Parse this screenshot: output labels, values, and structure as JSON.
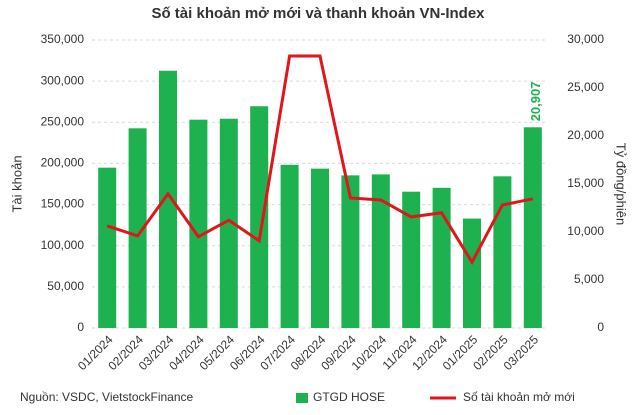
{
  "chart_data": {
    "type": "bar-line",
    "title": "Số tài khoản mở mới và thanh khoản VN-Index",
    "source": "Nguồn: VSDC, VietstockFinance",
    "y_label": "Tài khoản",
    "y2_label": "Tỷ đồng/phiên",
    "categories": [
      "01/2024",
      "02/2024",
      "03/2024",
      "04/2024",
      "05/2024",
      "06/2024",
      "07/2024",
      "08/2024",
      "09/2024",
      "10/2024",
      "11/2024",
      "12/2024",
      "01/2025",
      "02/2025",
      "03/2025"
    ],
    "series": [
      {
        "name": "GTGD HOSE",
        "type": "bar",
        "axis": "y2",
        "color": "#1db24f",
        "values": [
          16700,
          20800,
          26800,
          21700,
          21800,
          23100,
          17000,
          16600,
          15900,
          16000,
          14200,
          14600,
          11400,
          15800,
          20907
        ],
        "value_labels": [
          null,
          null,
          null,
          null,
          null,
          null,
          null,
          null,
          null,
          null,
          null,
          null,
          null,
          null,
          "20,907"
        ]
      },
      {
        "name": "Số tài khoản mở mới",
        "type": "line",
        "axis": "y",
        "color": "#e0161c",
        "values": [
          124000,
          112000,
          163000,
          111000,
          131000,
          106000,
          330500,
          330500,
          158000,
          155600,
          135000,
          140000,
          80000,
          149500,
          157000
        ]
      }
    ],
    "ylim": [
      0,
      350000
    ],
    "yticks": [
      0,
      {
        "value": 50000,
        "label": "50,000"
      },
      {
        "value": 100000,
        "label": "100,000"
      },
      {
        "value": 150000,
        "label": "150,000"
      },
      {
        "value": 200000,
        "label": "200,000"
      },
      {
        "value": 250000,
        "label": "250,000"
      },
      {
        "value": 300000,
        "label": "300,000"
      },
      {
        "value": 350000,
        "label": "350,000"
      }
    ],
    "y2lim": [
      0,
      30000
    ],
    "y2ticks": [
      0,
      {
        "value": 5000,
        "label": "5,000"
      },
      {
        "value": 10000,
        "label": "10,000"
      },
      {
        "value": 15000,
        "label": "15,000"
      },
      {
        "value": 20000,
        "label": "20,000"
      },
      {
        "value": 25000,
        "label": "25,000"
      },
      {
        "value": 30000,
        "label": "30,000"
      }
    ],
    "grid": true
  }
}
